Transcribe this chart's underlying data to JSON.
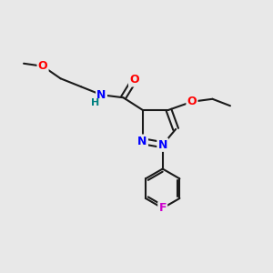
{
  "bg_color": "#e8e8e8",
  "bond_color": "#1a1a1a",
  "bond_width": 1.5,
  "atom_colors": {
    "N": "#0000ff",
    "O": "#ff0000",
    "F": "#cc00cc",
    "H_N": "#008080",
    "C": "#1a1a1a"
  },
  "font_size": 9,
  "font_size_small": 8
}
